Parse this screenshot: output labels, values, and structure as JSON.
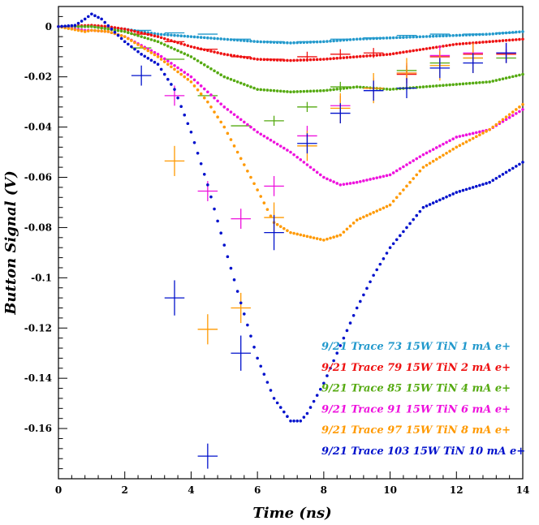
{
  "chart_data": {
    "type": "scatter",
    "title": "",
    "xlabel": "Time (ns)",
    "ylabel": "Button Signal (V)",
    "xlim": [
      0,
      14
    ],
    "ylim": [
      -0.18,
      0.008
    ],
    "x_ticks": [
      0,
      2,
      4,
      6,
      8,
      10,
      12,
      14
    ],
    "x_tick_labels": [
      "0",
      "2",
      "4",
      "6",
      "8",
      "10",
      "12",
      "14"
    ],
    "y_ticks": [
      0,
      -0.02,
      -0.04,
      -0.06,
      -0.08,
      -0.1,
      -0.12,
      -0.14,
      -0.16
    ],
    "y_tick_labels": [
      "0",
      "-0.02",
      "-0.04",
      "-0.06",
      "-0.08",
      "-0.1",
      "-0.12",
      "-0.14",
      "-0.16"
    ],
    "grid": false,
    "legend_position": "bottom-right",
    "series": [
      {
        "name": "9/21 Trace 73 15W TiN 1 mA e+",
        "color": "#2299cc",
        "trace": [
          [
            0,
            0
          ],
          [
            1,
            0
          ],
          [
            1.5,
            -0.0005
          ],
          [
            2,
            -0.001
          ],
          [
            3,
            -0.003
          ],
          [
            4,
            -0.004
          ],
          [
            5,
            -0.005
          ],
          [
            6,
            -0.006
          ],
          [
            7,
            -0.0065
          ],
          [
            8,
            -0.006
          ],
          [
            9,
            -0.005
          ],
          [
            10,
            -0.0045
          ],
          [
            11,
            -0.004
          ],
          [
            12,
            -0.0035
          ],
          [
            13,
            -0.003
          ],
          [
            14,
            -0.002
          ]
        ],
        "points": [
          [
            2.5,
            -0.0015,
            0.6,
            0
          ],
          [
            3.5,
            -0.0025,
            0.6,
            0
          ],
          [
            4.5,
            -0.003,
            0.6,
            0
          ],
          [
            5.5,
            -0.005,
            0.6,
            0
          ],
          [
            6.5,
            -0.006,
            0.6,
            0
          ],
          [
            7.5,
            -0.006,
            0.6,
            0
          ],
          [
            8.5,
            -0.005,
            0.6,
            0
          ],
          [
            9.5,
            -0.0045,
            0.6,
            0
          ],
          [
            10.5,
            -0.0035,
            0.6,
            0
          ],
          [
            11.5,
            -0.003,
            0.6,
            0
          ],
          [
            12.5,
            -0.003,
            0.6,
            0
          ],
          [
            13.5,
            -0.0025,
            0.6,
            0
          ]
        ]
      },
      {
        "name": "9/21 Trace 79 15W TiN 2 mA e+",
        "color": "#ee1111",
        "trace": [
          [
            0,
            0
          ],
          [
            1,
            0.0005
          ],
          [
            1.5,
            0
          ],
          [
            2,
            -0.001
          ],
          [
            3,
            -0.004
          ],
          [
            4,
            -0.008
          ],
          [
            5,
            -0.011
          ],
          [
            6,
            -0.013
          ],
          [
            7,
            -0.0135
          ],
          [
            8,
            -0.013
          ],
          [
            9,
            -0.012
          ],
          [
            10,
            -0.011
          ],
          [
            11,
            -0.009
          ],
          [
            12,
            -0.007
          ],
          [
            13,
            -0.006
          ],
          [
            14,
            -0.005
          ]
        ],
        "points": [
          [
            2.5,
            -0.003,
            0.6,
            0
          ],
          [
            3.5,
            -0.006,
            0.6,
            0
          ],
          [
            4.5,
            -0.009,
            0.6,
            0
          ],
          [
            5.5,
            -0.012,
            0.6,
            0
          ],
          [
            6.5,
            -0.013,
            0.6,
            0
          ],
          [
            7.5,
            -0.012,
            0.6,
            0.002
          ],
          [
            8.5,
            -0.011,
            0.6,
            0.002
          ],
          [
            9.5,
            -0.0105,
            0.6,
            0.002
          ],
          [
            10.5,
            -0.019,
            0.6,
            0.002
          ],
          [
            11.5,
            -0.012,
            0.6,
            0.002
          ],
          [
            12.5,
            -0.011,
            0.6,
            0.002
          ],
          [
            13.5,
            -0.011,
            0.6,
            0.002
          ]
        ]
      },
      {
        "name": "9/21 Trace 85 15W TiN 4 mA e+",
        "color": "#55aa11",
        "trace": [
          [
            0,
            0
          ],
          [
            1,
            0
          ],
          [
            1.5,
            -0.001
          ],
          [
            2,
            -0.002
          ],
          [
            3,
            -0.006
          ],
          [
            4,
            -0.012
          ],
          [
            5,
            -0.02
          ],
          [
            6,
            -0.025
          ],
          [
            7,
            -0.026
          ],
          [
            8,
            -0.0255
          ],
          [
            9,
            -0.024
          ],
          [
            10,
            -0.025
          ],
          [
            11,
            -0.024
          ],
          [
            12,
            -0.023
          ],
          [
            13,
            -0.022
          ],
          [
            14,
            -0.019
          ]
        ],
        "points": [
          [
            2.5,
            -0.0085,
            0.6,
            0
          ],
          [
            3.5,
            -0.013,
            0.6,
            0
          ],
          [
            4.5,
            -0.0275,
            0.6,
            0
          ],
          [
            5.5,
            -0.0395,
            0.6,
            0
          ],
          [
            6.5,
            -0.0375,
            0.6,
            0.002
          ],
          [
            7.5,
            -0.032,
            0.6,
            0.002
          ],
          [
            8.5,
            -0.024,
            0.6,
            0.002
          ],
          [
            9.5,
            -0.0245,
            0.6,
            0.002
          ],
          [
            10.5,
            -0.0175,
            0.6,
            0.002
          ],
          [
            11.5,
            -0.0145,
            0.6,
            0.002
          ],
          [
            12.5,
            -0.0125,
            0.6,
            0.002
          ],
          [
            13.5,
            -0.0125,
            0.6,
            0.002
          ]
        ]
      },
      {
        "name": "9/21 Trace 91 15W TiN 6 mA e+",
        "color": "#ee11dd",
        "trace": [
          [
            0,
            0
          ],
          [
            0.8,
            -0.0015
          ],
          [
            1,
            -0.0015
          ],
          [
            1.5,
            -0.002
          ],
          [
            2,
            -0.004
          ],
          [
            3,
            -0.011
          ],
          [
            4,
            -0.02
          ],
          [
            5,
            -0.032
          ],
          [
            6,
            -0.042
          ],
          [
            7,
            -0.05
          ],
          [
            8,
            -0.06
          ],
          [
            8.5,
            -0.063
          ],
          [
            9,
            -0.062
          ],
          [
            10,
            -0.059
          ],
          [
            11,
            -0.051
          ],
          [
            12,
            -0.044
          ],
          [
            13,
            -0.041
          ],
          [
            14,
            -0.033
          ]
        ],
        "points": [
          [
            3.5,
            -0.0275,
            0.6,
            0.004
          ],
          [
            4.5,
            -0.0655,
            0.6,
            0.004
          ],
          [
            5.5,
            -0.0765,
            0.6,
            0.004
          ],
          [
            6.5,
            -0.0635,
            0.6,
            0.004
          ],
          [
            7.5,
            -0.0435,
            0.6,
            0.004
          ],
          [
            8.5,
            -0.0315,
            0.6,
            0.004
          ],
          [
            9.5,
            -0.0245,
            0.6,
            0.004
          ],
          [
            10.5,
            -0.0185,
            0.6,
            0.004
          ],
          [
            11.5,
            -0.0115,
            0.6,
            0.004
          ],
          [
            12.5,
            -0.0105,
            0.6,
            0.004
          ],
          [
            13.5,
            -0.0105,
            0.6,
            0.004
          ]
        ]
      },
      {
        "name": "9/21 Trace 97 15W TiN 8 mA e+",
        "color": "#ff9900",
        "trace": [
          [
            0,
            0
          ],
          [
            0.8,
            -0.002
          ],
          [
            1,
            -0.0015
          ],
          [
            1.5,
            -0.002
          ],
          [
            2,
            -0.004
          ],
          [
            3,
            -0.012
          ],
          [
            4,
            -0.022
          ],
          [
            4.5,
            -0.03
          ],
          [
            5,
            -0.04
          ],
          [
            6,
            -0.065
          ],
          [
            6.5,
            -0.078
          ],
          [
            7,
            -0.082
          ],
          [
            8,
            -0.085
          ],
          [
            8.5,
            -0.083
          ],
          [
            9,
            -0.077
          ],
          [
            10,
            -0.071
          ],
          [
            11,
            -0.056
          ],
          [
            12,
            -0.048
          ],
          [
            13,
            -0.041
          ],
          [
            14,
            -0.031
          ]
        ],
        "points": [
          [
            3.5,
            -0.0535,
            0.6,
            0.006
          ],
          [
            4.5,
            -0.1205,
            0.6,
            0.006
          ],
          [
            5.5,
            -0.112,
            0.6,
            0.006
          ],
          [
            6.5,
            -0.076,
            0.6,
            0.006
          ],
          [
            7.5,
            -0.0475,
            0.6,
            0.006
          ],
          [
            8.5,
            -0.0325,
            0.6,
            0.006
          ],
          [
            9.5,
            -0.0245,
            0.6,
            0.006
          ],
          [
            10.5,
            -0.0185,
            0.6,
            0.006
          ],
          [
            11.5,
            -0.0155,
            0.6,
            0.006
          ],
          [
            12.5,
            -0.0125,
            0.6,
            0.006
          ]
        ]
      },
      {
        "name": "9/21 Trace 103 15W TiN 10 mA e+",
        "color": "#0011cc",
        "trace": [
          [
            0,
            0
          ],
          [
            0.5,
            0.0005
          ],
          [
            0.8,
            0.003
          ],
          [
            1,
            0.005
          ],
          [
            1.3,
            0.003
          ],
          [
            1.6,
            -0.001
          ],
          [
            2,
            -0.006
          ],
          [
            2.5,
            -0.011
          ],
          [
            3,
            -0.015
          ],
          [
            3.5,
            -0.025
          ],
          [
            4,
            -0.042
          ],
          [
            4.5,
            -0.063
          ],
          [
            5,
            -0.087
          ],
          [
            5.5,
            -0.11
          ],
          [
            6,
            -0.132
          ],
          [
            6.5,
            -0.148
          ],
          [
            7,
            -0.157
          ],
          [
            7.3,
            -0.157
          ],
          [
            7.5,
            -0.154
          ],
          [
            8,
            -0.142
          ],
          [
            8.5,
            -0.127
          ],
          [
            9,
            -0.112
          ],
          [
            9.5,
            -0.099
          ],
          [
            10,
            -0.088
          ],
          [
            10.5,
            -0.08
          ],
          [
            11,
            -0.072
          ],
          [
            12,
            -0.066
          ],
          [
            13,
            -0.062
          ],
          [
            14,
            -0.054
          ]
        ],
        "points": [
          [
            2.5,
            -0.0195,
            0.6,
            0.004
          ],
          [
            3.5,
            -0.108,
            0.6,
            0.007
          ],
          [
            4.5,
            -0.171,
            0.6,
            0.005
          ],
          [
            5.5,
            -0.13,
            0.6,
            0.007
          ],
          [
            6.5,
            -0.082,
            0.6,
            0.007
          ],
          [
            7.5,
            -0.0465,
            0.6,
            0.004
          ],
          [
            8.5,
            -0.0345,
            0.6,
            0.004
          ],
          [
            9.5,
            -0.0255,
            0.6,
            0.004
          ],
          [
            10.5,
            -0.0245,
            0.6,
            0.004
          ],
          [
            11.5,
            -0.0165,
            0.6,
            0.004
          ],
          [
            12.5,
            -0.0145,
            0.6,
            0.004
          ],
          [
            13.5,
            -0.0105,
            0.6,
            0.004
          ]
        ]
      }
    ]
  }
}
